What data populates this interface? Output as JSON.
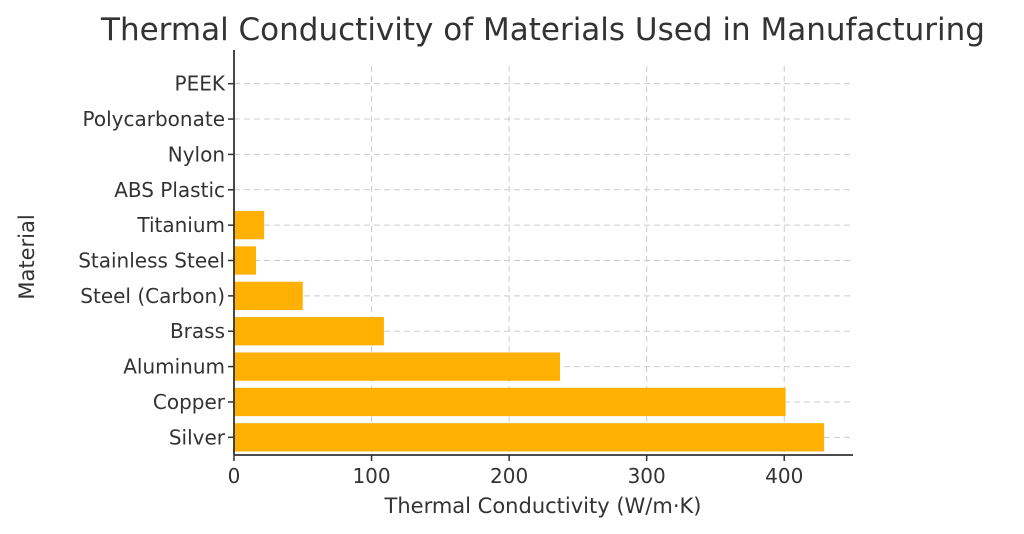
{
  "chart_data": {
    "type": "bar",
    "orientation": "horizontal",
    "title": "Thermal Conductivity of Materials Used in Manufacturing",
    "xlabel": "Thermal Conductivity (W/m·K)",
    "ylabel": "Material",
    "xlim": [
      0,
      450
    ],
    "xticks": [
      0,
      100,
      200,
      300,
      400
    ],
    "grid": true,
    "bar_color": "#FFB000",
    "categories": [
      "Silver",
      "Copper",
      "Aluminum",
      "Brass",
      "Steel (Carbon)",
      "Stainless Steel",
      "Titanium",
      "ABS Plastic",
      "Nylon",
      "Polycarbonate",
      "PEEK"
    ],
    "values": [
      429,
      401,
      237,
      109,
      50,
      16,
      21.9,
      0.17,
      0.25,
      0.2,
      0.25
    ]
  }
}
